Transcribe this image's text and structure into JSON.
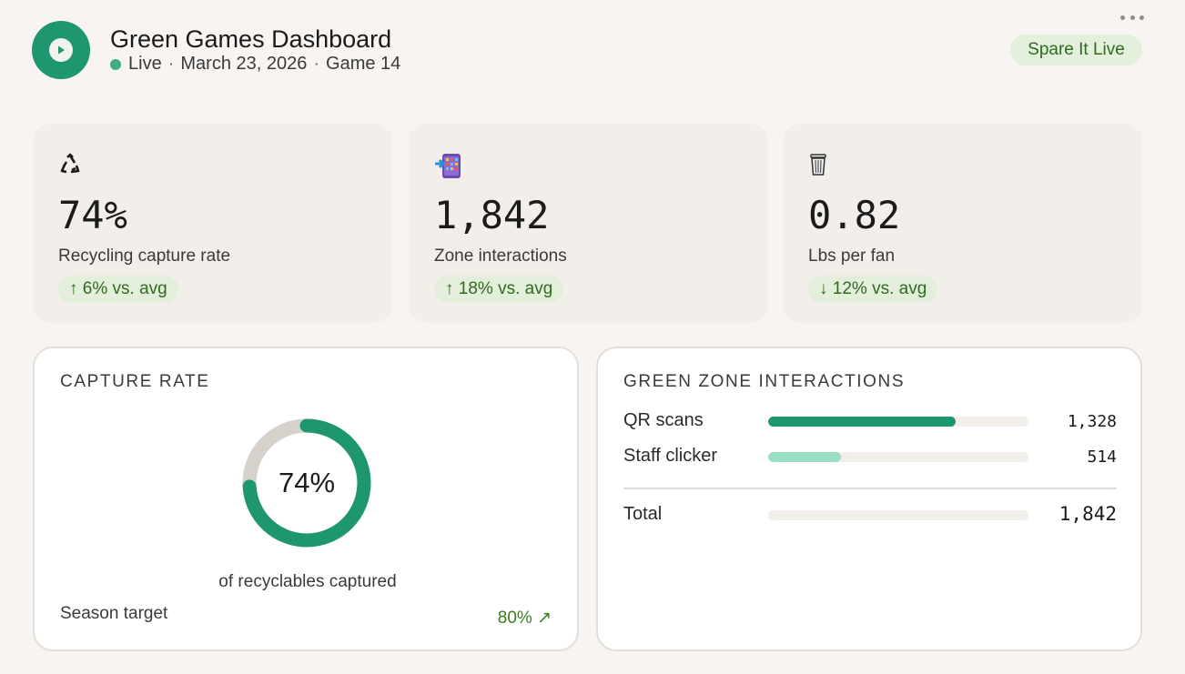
{
  "header": {
    "title": "Green Games Dashboard",
    "status": "Live",
    "date": "March 23, 2026",
    "game": "Game 14",
    "separator": "·",
    "badge": "Spare It Live",
    "logo_icon": "play-icon",
    "accent_color": "#1e9670"
  },
  "kpis": [
    {
      "icon": "recycle-icon",
      "value": "74%",
      "label": "Recycling capture rate",
      "delta": "↑ 6% vs. avg"
    },
    {
      "icon": "phone-scan-icon",
      "value": "1,842",
      "label": "Zone interactions",
      "delta": "↑ 18% vs. avg"
    },
    {
      "icon": "trash-can-icon",
      "value": "0.82",
      "label": "Lbs per fan",
      "delta": "↓ 12% vs. avg"
    }
  ],
  "capture": {
    "title": "CAPTURE RATE",
    "percent": 74,
    "percent_label": "74%",
    "caption": "of recyclables captured",
    "target_label": "Season target",
    "target_value": "80% ↗"
  },
  "interactions": {
    "title": "GREEN ZONE INTERACTIONS",
    "rows": [
      {
        "label": "QR scans",
        "value": 1328,
        "value_label": "1,328",
        "color": "#1e9670"
      },
      {
        "label": "Staff clicker",
        "value": 514,
        "value_label": "514",
        "color": "#9adfc4"
      }
    ],
    "total_label": "Total",
    "total_value": "1,842",
    "scale_max": 1842
  }
}
